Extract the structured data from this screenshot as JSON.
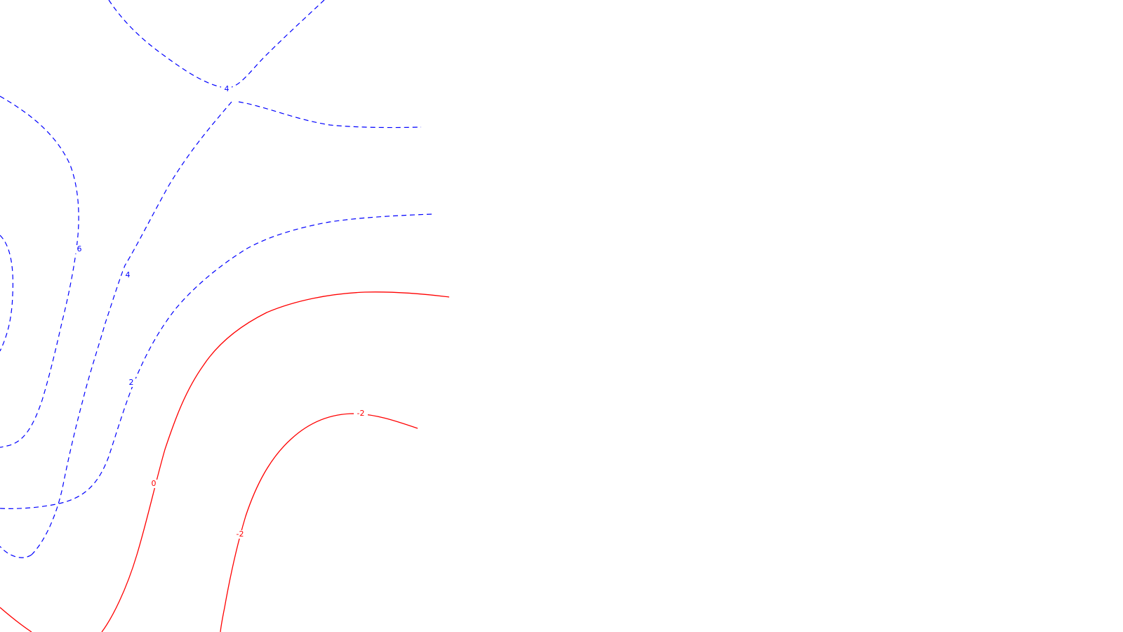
{
  "chart_data": {
    "type": "contour",
    "colors": {
      "positive": "#0000ff",
      "negative": "#ff0000",
      "background": "#ffffff"
    },
    "line_styles": {
      "positive": "dashed",
      "negative": "solid"
    },
    "contour_labels": [
      {
        "id": "label-4-upper",
        "text": "4",
        "sign": "positive"
      },
      {
        "id": "label-6",
        "text": "6",
        "sign": "positive"
      },
      {
        "id": "label-4-left",
        "text": "4",
        "sign": "positive"
      },
      {
        "id": "label-2",
        "text": "2",
        "sign": "positive"
      },
      {
        "id": "label-0",
        "text": "0",
        "sign": "negative"
      },
      {
        "id": "label-neg2-upper",
        "text": "-2",
        "sign": "negative"
      },
      {
        "id": "label-neg2-lower",
        "text": "-2",
        "sign": "negative"
      }
    ]
  }
}
